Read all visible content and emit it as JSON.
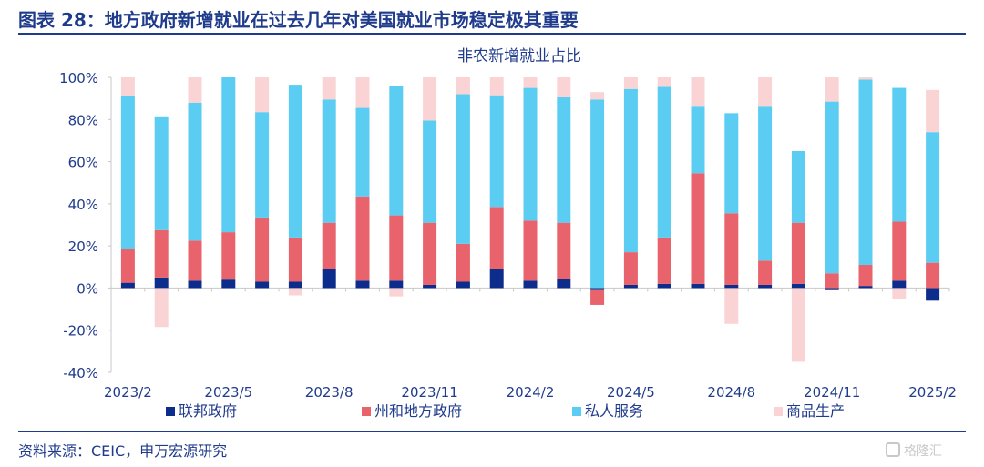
{
  "header": {
    "title": "图表 28：地方政府新增就业在过去几年对美国就业市场稳定极其重要"
  },
  "source": "资料来源：CEIC，申万宏源研究",
  "watermark": "格隆汇",
  "chart_data": {
    "type": "bar",
    "stacked": true,
    "title": "非农新增就业占比",
    "ylim": [
      -40,
      100
    ],
    "yticks": [
      -40,
      -20,
      0,
      20,
      40,
      60,
      80,
      100
    ],
    "ytick_labels": [
      "-40%",
      "-20%",
      "0%",
      "20%",
      "40%",
      "60%",
      "80%",
      "100%"
    ],
    "legend_position": "bottom",
    "categories": [
      "2023/2",
      "2023/3",
      "2023/4",
      "2023/5",
      "2023/6",
      "2023/7",
      "2023/8",
      "2023/9",
      "2023/10",
      "2023/11",
      "2023/12",
      "2024/1",
      "2024/2",
      "2024/3",
      "2024/4",
      "2024/5",
      "2024/6",
      "2024/7",
      "2024/8",
      "2024/9",
      "2024/10",
      "2024/11",
      "2024/12",
      "2025/1",
      "2025/2"
    ],
    "xtick_labels": [
      "2023/2",
      "",
      "",
      "2023/5",
      "",
      "",
      "2023/8",
      "",
      "",
      "2023/11",
      "",
      "",
      "2024/2",
      "",
      "",
      "2024/5",
      "",
      "",
      "2024/8",
      "",
      "",
      "2024/11",
      "",
      "",
      "2025/2"
    ],
    "series": [
      {
        "name": "联邦政府",
        "color": "#0D2D8C",
        "values": [
          2.5,
          5,
          3.5,
          4,
          3,
          3,
          9,
          3.5,
          3.5,
          1.5,
          3,
          9,
          3.5,
          4.5,
          -1,
          1.5,
          2,
          2,
          1.5,
          1.5,
          2,
          -1,
          1,
          3.5,
          -6
        ]
      },
      {
        "name": "州和地方政府",
        "color": "#E8636B",
        "values": [
          16,
          22.5,
          19,
          22.5,
          30.5,
          21,
          22,
          40,
          31,
          29.5,
          18,
          29.5,
          28.5,
          26.5,
          -7,
          15.5,
          22,
          52.5,
          34,
          11.5,
          29,
          7,
          10,
          28,
          12
        ]
      },
      {
        "name": "私人服务",
        "color": "#5CCDF2",
        "values": [
          72.5,
          54,
          65.5,
          73.5,
          50,
          72.5,
          58.5,
          42,
          61.5,
          48.5,
          71,
          53,
          63,
          59.5,
          89.5,
          77.5,
          71.5,
          32,
          47.5,
          73.5,
          34,
          81.5,
          88,
          63.5,
          62
        ]
      },
      {
        "name": "商品生产",
        "color": "#FAD4D4",
        "values": [
          9,
          -18.5,
          12,
          0,
          16.5,
          -3.5,
          10.5,
          14.5,
          -4,
          20.5,
          8,
          8.5,
          5,
          9.5,
          3.5,
          5.5,
          4.5,
          13.5,
          -17,
          13.5,
          -35,
          11.5,
          1,
          -5,
          20
        ]
      }
    ]
  }
}
